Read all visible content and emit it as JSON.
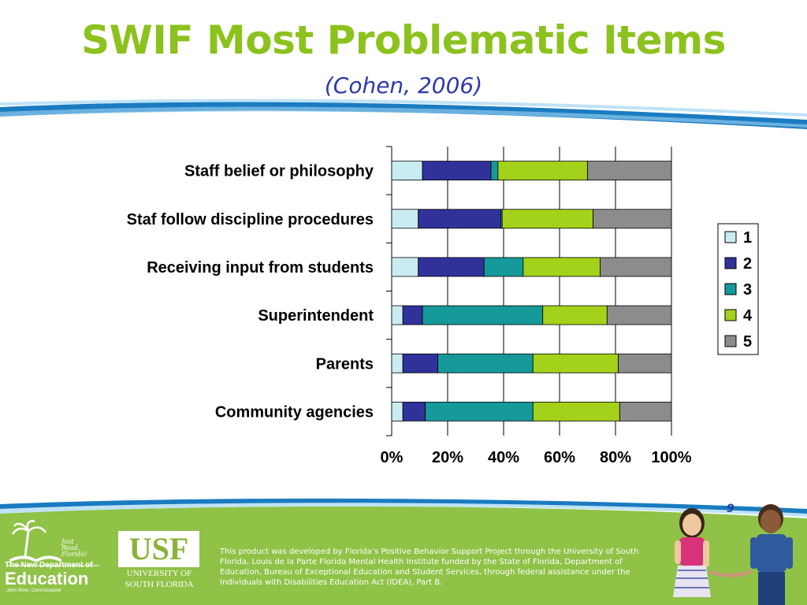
{
  "slide": {
    "title": "SWIF Most Problematic Items",
    "subtitle": "(Cohen, 2006)",
    "page_number": "9"
  },
  "chart_data": {
    "type": "bar",
    "orientation": "horizontal",
    "stacked": "percent",
    "title": "",
    "xlabel": "",
    "ylabel": "",
    "categories": [
      "Staff belief or philosophy",
      "Staf follow discipline procedures",
      "Receiving input from students",
      "Superintendent",
      "Parents",
      "Community agencies"
    ],
    "series": [
      {
        "name": "1",
        "color": "#c8ecf0",
        "values": [
          11,
          9.5,
          9.5,
          4,
          4,
          4
        ]
      },
      {
        "name": "2",
        "color": "#30329a",
        "values": [
          24.5,
          29.5,
          23.5,
          7,
          12.5,
          8
        ]
      },
      {
        "name": "3",
        "color": "#15999a",
        "values": [
          2.5,
          0.5,
          14,
          43,
          34,
          38.5
        ]
      },
      {
        "name": "4",
        "color": "#a4d11a",
        "values": [
          32,
          32.5,
          27.5,
          23,
          30.5,
          31
        ]
      },
      {
        "name": "5",
        "color": "#8c8c8c",
        "values": [
          30,
          28,
          25.5,
          23,
          19,
          18.5
        ]
      }
    ],
    "x_ticks": [
      "0%",
      "20%",
      "40%",
      "60%",
      "80%",
      "100%"
    ],
    "xlim": [
      0,
      100
    ],
    "grid": "vertical",
    "legend_position": "right"
  },
  "footer": {
    "doe_tagline": "Just Read, Florida!",
    "doe_line1": "The New Department of",
    "doe_line2": "Education",
    "doe_line3": "John Winn, Commissioner",
    "usf_logo": "USF",
    "usf_line1": "UNIVERSITY OF",
    "usf_line2": "SOUTH FLORIDA",
    "disclaimer": "This product was developed by Florida’s Positive Behavior Support Project through the University of South Florida, Louis de la Parte Florida Mental Health Institute funded by the State of Florida, Department of Education, Bureau of Exceptional Education and Student Services, through federal assistance under the Individuals with Disabilities Education Act (IDEA), Part B."
  },
  "colors": {
    "title": "#8cc21e",
    "subtitle": "#2e3aa8",
    "footer_green": "#8fc247",
    "swoosh_blue": "#1a7bc0"
  }
}
